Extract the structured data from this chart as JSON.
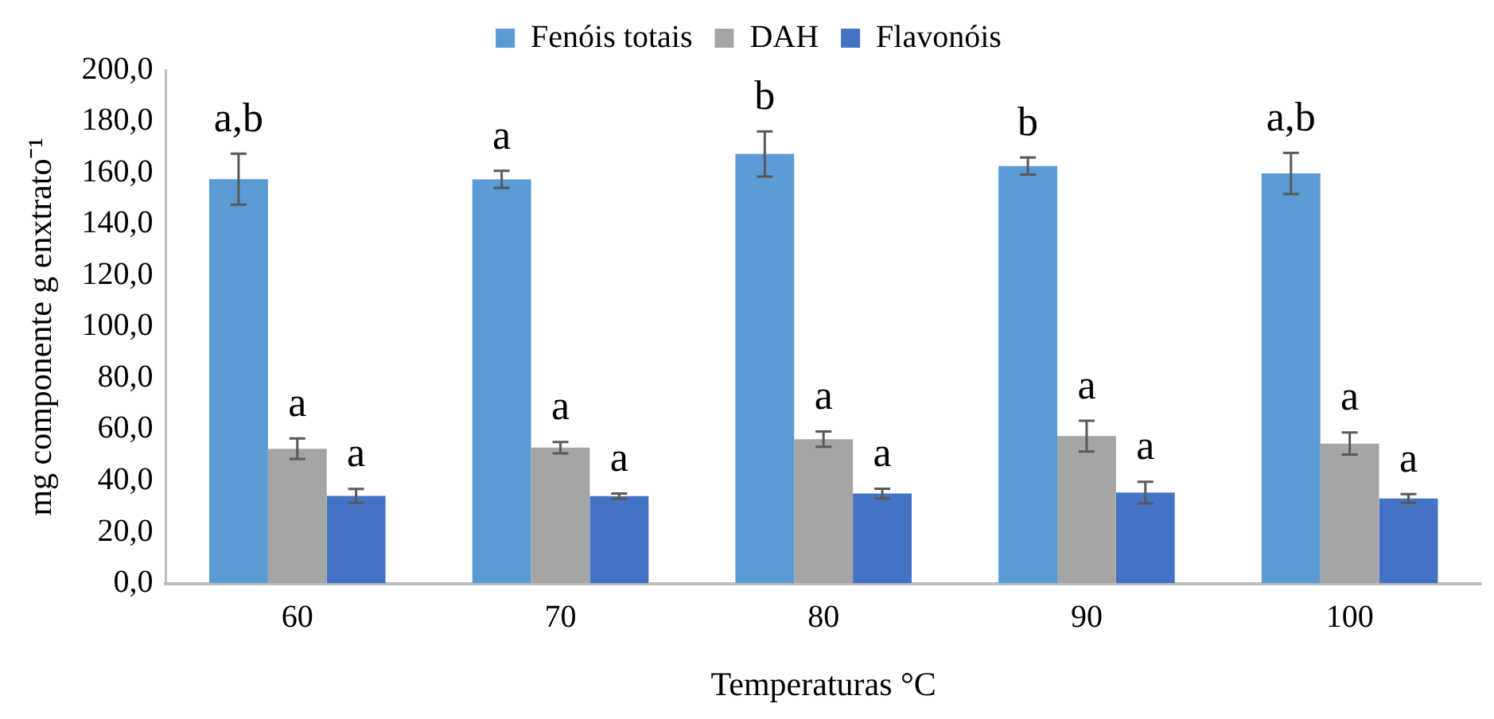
{
  "chart_data": {
    "type": "bar",
    "xlabel": "Temperaturas °C",
    "ylabel": "mg componente g enxtrato⁻¹",
    "categories": [
      "60",
      "70",
      "80",
      "90",
      "100"
    ],
    "series": [
      {
        "name": "Fenóis totais",
        "color": "#5b9bd5",
        "values": [
          157.5,
          157.4,
          167.3,
          162.6,
          159.7
        ],
        "errors": [
          9.9,
          3.3,
          8.8,
          3.3,
          8
        ],
        "value_labels": [
          "a,b",
          "a",
          "b",
          "b",
          "a,b"
        ]
      },
      {
        "name": "DAH",
        "color": "#a5a5a5",
        "values": [
          52.5,
          52.9,
          56.2,
          57.4,
          54.5
        ],
        "errors": [
          4,
          2.2,
          3,
          6,
          4.3
        ],
        "value_labels": [
          "a",
          "a",
          "a",
          "a",
          "a"
        ]
      },
      {
        "name": "Flavonóis",
        "color": "#4472c4",
        "values": [
          34.1,
          34,
          35,
          35.4,
          33.1
        ],
        "errors": [
          2.7,
          1,
          1.9,
          4.2,
          1.7
        ],
        "value_labels": [
          "a",
          "a",
          "a",
          "a",
          "a"
        ]
      }
    ],
    "ylim": [
      0,
      200
    ],
    "yticks": [
      {
        "value": 0,
        "label": "0,0"
      },
      {
        "value": 20,
        "label": "20,0"
      },
      {
        "value": 40,
        "label": "40,0"
      },
      {
        "value": 60,
        "label": "60,0"
      },
      {
        "value": 80,
        "label": "80,0"
      },
      {
        "value": 100,
        "label": "100,0"
      },
      {
        "value": 120,
        "label": "120,0"
      },
      {
        "value": 140,
        "label": "140,0"
      },
      {
        "value": 160,
        "label": "160,0"
      },
      {
        "value": 180,
        "label": "180,0"
      },
      {
        "value": 200,
        "label": "200,0"
      }
    ],
    "legend": "top",
    "grid": false
  }
}
